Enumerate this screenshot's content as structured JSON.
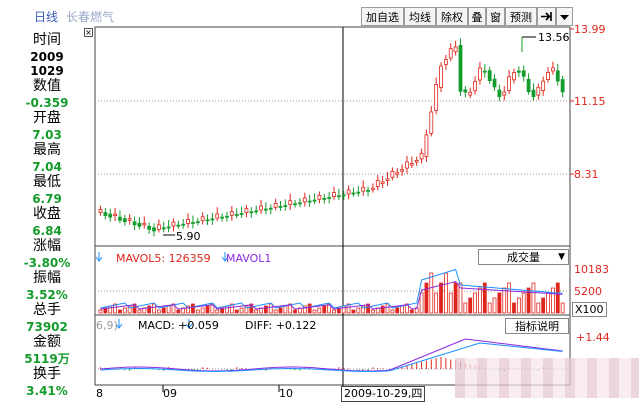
{
  "header": {
    "title": "日线",
    "stock_name": "长春燃气",
    "buttons": [
      "加自选",
      "均线",
      "除权",
      "叠",
      "窗",
      "预测"
    ],
    "nav_icon": "fullscreen-arrow-icon",
    "menu_icon": "dropdown-triangle-icon"
  },
  "info_panel": {
    "time_label": "时间",
    "year": "2009",
    "date": "1029",
    "value_label": "数值",
    "value": "-0.359",
    "open_label": "开盘",
    "open": "7.03",
    "high_label": "最高",
    "high": "7.04",
    "low_label": "最低",
    "low": "6.79",
    "close_label": "收盘",
    "close": "6.84",
    "change_label": "涨幅",
    "change": "-3.80%",
    "amplitude_label": "振幅",
    "amplitude": "3.52%",
    "volume_label": "总手",
    "volume": "73902",
    "amount_label": "金额",
    "amount": "5119万",
    "turnover_label": "换手",
    "turnover": "3.41%",
    "close_icon": "close-x-icon"
  },
  "price_axis": [
    "13.99",
    "11.15",
    "8.31"
  ],
  "annotations": {
    "high_mark": "13.56",
    "low_mark": "5.90"
  },
  "volume_panel": {
    "mavol5_label": "MAVOL5: 126359",
    "mavol1_label": "MAVOL1",
    "selector": "成交量",
    "axis": [
      "10183",
      "5200",
      "X100"
    ]
  },
  "macd_panel": {
    "prefix": "6,9)",
    "macd_label": "MACD: +0.059",
    "diff_label": "DIFF: +0.122",
    "help_button": "指标说明",
    "axis": [
      "+1.44"
    ]
  },
  "date_axis": {
    "labels": [
      "8",
      "09",
      "10"
    ],
    "cursor_date": "2009-10-29,四"
  },
  "colors": {
    "up": "#e0261c",
    "down": "#159c2c",
    "grid": "#888888",
    "ma1": "#e0261c",
    "ma2": "#8a2be2",
    "ma3": "#1e90ff"
  }
}
